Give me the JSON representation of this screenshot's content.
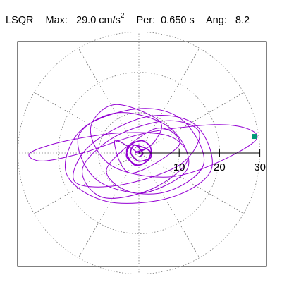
{
  "header": {
    "method": "LSQR",
    "max_label": "Max:",
    "max_value": "29.0 cm/s",
    "max_exp": "2",
    "per_label": "Per:",
    "per_value": "0.650 s",
    "ang_label": "Ang:",
    "ang_value": "8.2"
  },
  "chart_data": {
    "type": "scatter",
    "coordinate_system": "polar",
    "title": "LSQR  Max: 29.0 cm/s2  Per: 0.650 s  Ang: 8.2",
    "radial_ticks": [
      "10",
      "20",
      "30"
    ],
    "radial_tick_values": [
      10,
      20,
      30
    ],
    "r_max": 30,
    "units": "cm/s2",
    "grid": "dotted",
    "angular_spokes_deg": [
      0,
      30,
      60,
      90,
      120,
      150,
      180,
      210,
      240,
      270,
      300,
      330
    ],
    "series": [
      {
        "color": "#9400d3",
        "x": [
          0,
          4,
          5,
          -6,
          -12,
          -7,
          6,
          18,
          29.3,
          21.4,
          2,
          -14,
          -24,
          -27,
          -18,
          -4,
          8,
          12,
          3,
          -9,
          -14,
          -6,
          7,
          15,
          10,
          -5,
          -16,
          -12,
          2,
          14,
          18,
          8,
          -8,
          -18,
          -14,
          0,
          11,
          16,
          5,
          -10,
          -15,
          -5,
          8,
          12,
          0,
          -8,
          4,
          10,
          -2,
          -6,
          0
        ],
        "y": [
          0,
          3,
          8,
          12,
          6,
          -3,
          -6,
          -3,
          3.7,
          7,
          5,
          0,
          -2,
          0,
          3,
          5,
          4,
          -2,
          -9,
          -11,
          -4,
          4,
          8,
          5,
          -3,
          -8,
          -7,
          2,
          9,
          7,
          -4,
          -11,
          -12,
          -5,
          6,
          11,
          8,
          -3,
          -10,
          -7,
          4,
          10,
          6,
          -4,
          -10,
          -4,
          6,
          2,
          -5,
          3,
          0
        ]
      },
      {
        "color": "#9400d3",
        "x": [
          -1,
          2,
          3,
          0,
          -3,
          -2,
          1,
          3,
          2,
          -1,
          -3,
          -2,
          2,
          3,
          0,
          -2,
          -1,
          1,
          0
        ],
        "y": [
          0,
          1,
          -1,
          -3,
          -1,
          2,
          3,
          1,
          -2,
          -3,
          0,
          2,
          1,
          -1,
          -2,
          0,
          2,
          0,
          -1
        ]
      }
    ],
    "peak_marker": {
      "x": 28.7,
      "y": 4.1,
      "color": "#009977"
    }
  }
}
